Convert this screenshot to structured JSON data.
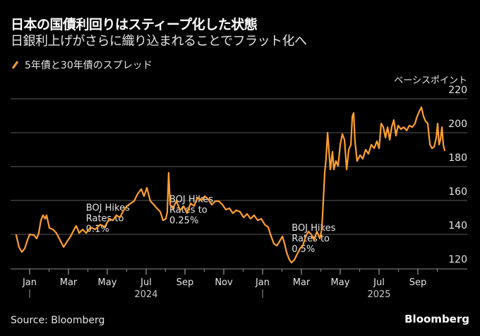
{
  "header": {
    "title": "日本の国債利回りはスティープ化した状態",
    "subtitle": "日銀利上げがさらに織り込まれることでフラット化へ"
  },
  "footer": {
    "source": "Source: Bloomberg",
    "brand": "Bloomberg"
  },
  "chart_data": {
    "type": "line",
    "title": "日本の国債利回りはスティープ化した状態",
    "subtitle": "日銀利上げがさらに織り込まれることでフラット化へ",
    "ylabel": "ベーシスポイント",
    "xlabel": "",
    "x_unit": "months since Jan 2024",
    "ylim": [
      120,
      220
    ],
    "xlim": [
      -0.7,
      21.5
    ],
    "grid": true,
    "legend_position": "top-left",
    "yticks": [
      120,
      140,
      160,
      180,
      200,
      220
    ],
    "xticks": [
      {
        "month": 0,
        "label": "Jan"
      },
      {
        "month": 2,
        "label": "Mar"
      },
      {
        "month": 4,
        "label": "May"
      },
      {
        "month": 6,
        "label": "Jul"
      },
      {
        "month": 8,
        "label": "Sep"
      },
      {
        "month": 10,
        "label": "Nov"
      },
      {
        "month": 12,
        "label": "Jan"
      },
      {
        "month": 14,
        "label": "Mar"
      },
      {
        "month": 16,
        "label": "May"
      },
      {
        "month": 18,
        "label": "Jul"
      },
      {
        "month": 20,
        "label": "Sep"
      }
    ],
    "years": [
      {
        "label": "2024",
        "month": 6,
        "divider_month": 0
      },
      {
        "label": "2025",
        "month": 18,
        "divider_month": 12
      }
    ],
    "annotations": [
      {
        "lines": [
          "BOJ Hikes",
          "Rates to",
          "0.1%"
        ],
        "month": 2.9,
        "value": 154
      },
      {
        "lines": [
          "BOJ Hikes",
          "Rates to",
          "0.25%"
        ],
        "month": 7.2,
        "value": 159
      },
      {
        "lines": [
          "BOJ Hikes",
          "Rates to",
          "0.5%"
        ],
        "month": 13.5,
        "value": 142
      }
    ],
    "series": [
      {
        "name": "5年債と30年債のスプレッド",
        "color": "#ff9f2f",
        "x": [
          -0.69,
          -0.55,
          -0.4,
          -0.25,
          -0.11,
          0,
          0.22,
          0.36,
          0.47,
          0.58,
          0.69,
          0.8,
          0.87,
          1.02,
          1.2,
          1.38,
          1.56,
          1.75,
          1.93,
          2.11,
          2.29,
          2.4,
          2.55,
          2.73,
          2.91,
          3.13,
          3.38,
          3.64,
          3.85,
          4.11,
          4.29,
          4.47,
          4.65,
          4.84,
          5.02,
          5.2,
          5.38,
          5.56,
          5.75,
          5.89,
          6.04,
          6.22,
          6.4,
          6.55,
          6.73,
          6.87,
          7.02,
          7.09,
          7.16,
          7.24,
          7.38,
          7.56,
          7.75,
          7.93,
          8.11,
          8.29,
          8.47,
          8.65,
          8.84,
          9.02,
          9.2,
          9.38,
          9.56,
          9.75,
          9.93,
          10.11,
          10.29,
          10.47,
          10.65,
          10.84,
          11.02,
          11.2,
          11.38,
          11.56,
          11.75,
          11.93,
          12.11,
          12.29,
          12.44,
          12.58,
          12.73,
          12.87,
          13.02,
          13.13,
          13.24,
          13.38,
          13.49,
          13.64,
          13.78,
          13.93,
          14.07,
          14.22,
          14.36,
          14.51,
          14.65,
          14.8,
          14.95,
          15.05,
          15.13,
          15.2,
          15.27,
          15.35,
          15.42,
          15.49,
          15.6,
          15.67,
          15.78,
          15.89,
          16.0,
          16.11,
          16.22,
          16.33,
          16.44,
          16.55,
          16.62,
          16.69,
          16.76,
          16.87,
          17.02,
          17.16,
          17.31,
          17.45,
          17.6,
          17.75,
          17.89,
          18.0,
          18.11,
          18.22,
          18.33,
          18.44,
          18.55,
          18.65,
          18.76,
          18.87,
          18.98,
          19.13,
          19.27,
          19.42,
          19.56,
          19.71,
          19.85,
          19.96,
          20.07,
          20.18,
          20.29,
          20.4,
          20.51,
          20.62,
          20.73,
          20.84,
          20.95,
          21.02,
          21.09,
          21.16,
          21.24,
          21.31,
          21.38
        ],
        "y": [
          139.6,
          132.5,
          129.6,
          131.7,
          136.7,
          140,
          139.6,
          137.5,
          140.8,
          148.3,
          151.3,
          149.2,
          151.3,
          143.8,
          142.9,
          140.8,
          136.7,
          132.5,
          135.8,
          138.8,
          142.9,
          145,
          140.8,
          142.9,
          140.8,
          144.2,
          142.9,
          145.8,
          144.2,
          149.2,
          148.3,
          151.3,
          150,
          154.2,
          156.7,
          158.3,
          159.6,
          163.8,
          166.7,
          162.5,
          167.5,
          159.6,
          157.5,
          155.4,
          153.3,
          148.3,
          149.2,
          153.3,
          176.3,
          157.5,
          155.4,
          159.6,
          154.2,
          156.7,
          152.5,
          158.3,
          156.7,
          161.7,
          160,
          162.5,
          160.8,
          157.5,
          159.6,
          159.6,
          157.5,
          154.6,
          155.4,
          152.5,
          154.2,
          153.3,
          150,
          152.1,
          149.2,
          151.3,
          148.3,
          149.2,
          145.8,
          144.2,
          138.8,
          134.6,
          133.3,
          135.8,
          138.8,
          134.6,
          129.2,
          125,
          123.3,
          125,
          128.3,
          131.7,
          133.3,
          138.8,
          141.7,
          140,
          136.7,
          141.7,
          137.5,
          142.9,
          160.4,
          176.3,
          184.6,
          200,
          188.8,
          178.3,
          188.8,
          178.3,
          183.3,
          180.4,
          192.9,
          199.2,
          195.8,
          178.3,
          190,
          192.9,
          209.6,
          211.7,
          195,
          183.3,
          186.7,
          184.6,
          190,
          187.5,
          192.9,
          190.8,
          195,
          190.8,
          205.4,
          203.3,
          197.1,
          203.3,
          195.8,
          203.3,
          207.5,
          198.3,
          204.2,
          202.1,
          203.3,
          201.3,
          204.2,
          203.3,
          205.4,
          209.6,
          212.5,
          215,
          209.6,
          206.7,
          205.4,
          192.9,
          190.8,
          191.7,
          197.1,
          205.4,
          192.9,
          195.8,
          203.3,
          192.9,
          189.6
        ]
      }
    ]
  }
}
